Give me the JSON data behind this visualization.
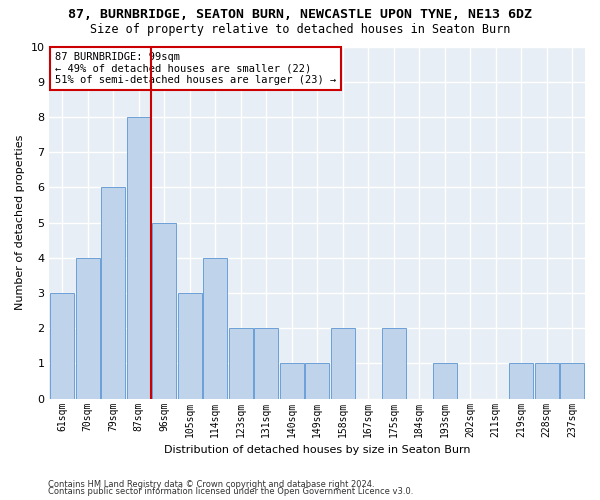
{
  "title": "87, BURNBRIDGE, SEATON BURN, NEWCASTLE UPON TYNE, NE13 6DZ",
  "subtitle": "Size of property relative to detached houses in Seaton Burn",
  "xlabel": "Distribution of detached houses by size in Seaton Burn",
  "ylabel": "Number of detached properties",
  "categories": [
    "61sqm",
    "70sqm",
    "79sqm",
    "87sqm",
    "96sqm",
    "105sqm",
    "114sqm",
    "123sqm",
    "131sqm",
    "140sqm",
    "149sqm",
    "158sqm",
    "167sqm",
    "175sqm",
    "184sqm",
    "193sqm",
    "202sqm",
    "211sqm",
    "219sqm",
    "228sqm",
    "237sqm"
  ],
  "values": [
    3,
    4,
    6,
    8,
    5,
    3,
    4,
    2,
    2,
    1,
    1,
    2,
    0,
    2,
    0,
    1,
    0,
    0,
    1,
    1,
    1
  ],
  "bar_color": "#bfd4eb",
  "bar_edge_color": "#6a9fd8",
  "vline_x_index": 3.5,
  "vline_color": "#cc0000",
  "annotation_text": "87 BURNBRIDGE: 99sqm\n← 49% of detached houses are smaller (22)\n51% of semi-detached houses are larger (23) →",
  "annotation_box_color": "#ffffff",
  "annotation_box_edge": "#cc0000",
  "ylim": [
    0,
    10
  ],
  "yticks": [
    0,
    1,
    2,
    3,
    4,
    5,
    6,
    7,
    8,
    9,
    10
  ],
  "bg_color": "#e8eef5",
  "grid_color": "#ffffff",
  "footer1": "Contains HM Land Registry data © Crown copyright and database right 2024.",
  "footer2": "Contains public sector information licensed under the Open Government Licence v3.0."
}
